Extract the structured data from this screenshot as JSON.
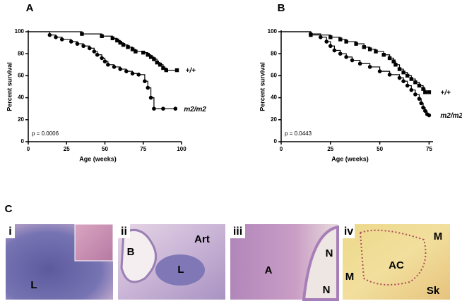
{
  "chart_data": [
    {
      "type": "step",
      "label": "A",
      "x_label": "Age (weeks)",
      "y_label": "Percent survival",
      "annotation": "p = 0.0006",
      "xlim": [
        0,
        100
      ],
      "ylim": [
        0,
        100
      ],
      "xticks": [
        0,
        25,
        50,
        75,
        100
      ],
      "yticks": [
        0,
        20,
        40,
        60,
        80,
        100
      ],
      "series": [
        {
          "name": "+/+",
          "marker": "square",
          "color": "#000000",
          "x": [
            0,
            35,
            48,
            55,
            58,
            60,
            62,
            65,
            68,
            70,
            75,
            78,
            80,
            82,
            84,
            86,
            88,
            90,
            97
          ],
          "values": [
            100,
            98,
            96,
            94,
            92,
            90,
            88,
            86,
            84,
            82,
            81,
            79,
            77,
            75,
            72,
            70,
            67,
            65,
            65
          ]
        },
        {
          "name": "m2/m2",
          "marker": "circle",
          "color": "#000000",
          "x": [
            0,
            14,
            18,
            22,
            28,
            32,
            36,
            40,
            43,
            45,
            48,
            50,
            52,
            56,
            60,
            64,
            68,
            72,
            76,
            78,
            80,
            82,
            88,
            96
          ],
          "values": [
            100,
            97,
            95,
            93,
            91,
            89,
            87,
            85,
            82,
            79,
            76,
            73,
            70,
            68,
            66,
            64,
            62,
            61,
            55,
            49,
            40,
            30,
            30,
            30
          ]
        }
      ]
    },
    {
      "type": "step",
      "label": "B",
      "x_label": "Age (weeks)",
      "y_label": "Percent survival",
      "annotation": "p = 0.0443",
      "xlim": [
        0,
        77
      ],
      "ylim": [
        0,
        100
      ],
      "xticks": [
        0,
        25,
        50,
        75
      ],
      "yticks": [
        0,
        20,
        40,
        60,
        80,
        100
      ],
      "series": [
        {
          "name": "+/+",
          "marker": "square",
          "color": "#000000",
          "x": [
            0,
            15,
            25,
            30,
            33,
            38,
            42,
            45,
            48,
            52,
            55,
            57,
            58,
            60,
            62,
            64,
            66,
            68,
            70,
            72,
            73,
            75
          ],
          "values": [
            100,
            97,
            95,
            93,
            91,
            89,
            86,
            84,
            82,
            79,
            76,
            73,
            70,
            66,
            63,
            60,
            57,
            54,
            51,
            48,
            45,
            45
          ]
        },
        {
          "name": "m2/m2",
          "marker": "circle",
          "color": "#000000",
          "x": [
            0,
            15,
            20,
            23,
            25,
            27,
            30,
            33,
            36,
            40,
            45,
            50,
            55,
            60,
            62,
            64,
            66,
            68,
            70,
            71,
            72,
            73,
            74,
            75
          ],
          "values": [
            100,
            98,
            95,
            91,
            87,
            83,
            80,
            77,
            74,
            71,
            68,
            64,
            61,
            58,
            55,
            51,
            47,
            43,
            39,
            35,
            31,
            28,
            25,
            24
          ]
        }
      ]
    }
  ],
  "panel_c": {
    "label": "C",
    "images": [
      {
        "label": "i",
        "annotations": [
          "L"
        ]
      },
      {
        "label": "ii",
        "annotations": [
          "B",
          "Art",
          "L"
        ]
      },
      {
        "label": "iii",
        "annotations": [
          "A",
          "N",
          "N"
        ]
      },
      {
        "label": "iv",
        "annotations": [
          "M",
          "AC",
          "M",
          "Sk"
        ]
      }
    ]
  }
}
